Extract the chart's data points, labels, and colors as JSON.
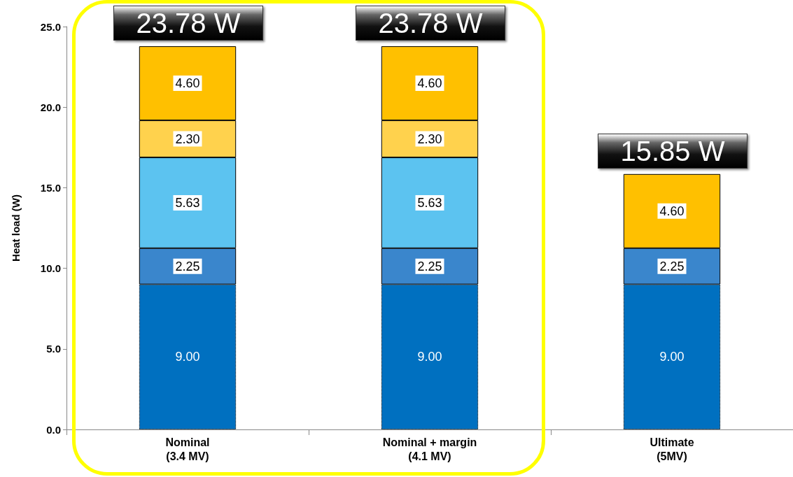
{
  "chart_data": {
    "type": "bar",
    "stacked": true,
    "ylabel": "Heat load (W)",
    "categories": [
      "Nominal\n(3.4 MV)",
      "Nominal + margin\n(4.1 MV)",
      "Ultimate\n(5MV)"
    ],
    "series": [
      {
        "color": "#0070c0",
        "values": [
          9.0,
          9.0,
          9.0
        ],
        "value_labels": [
          "9.00",
          "9.00",
          "9.00"
        ]
      },
      {
        "color": "#3a86cc",
        "values": [
          2.25,
          2.25,
          2.25
        ],
        "value_labels": [
          "2.25",
          "2.25",
          "2.25"
        ]
      },
      {
        "color": "#5cc3f0",
        "values": [
          5.63,
          5.63,
          null
        ],
        "value_labels": [
          "5.63",
          "5.63",
          null
        ]
      },
      {
        "color": "#ffd24d",
        "values": [
          2.3,
          2.3,
          null
        ],
        "value_labels": [
          "2.30",
          "2.30",
          null
        ]
      },
      {
        "color": "#ffc000",
        "values": [
          4.6,
          4.6,
          4.6
        ],
        "value_labels": [
          "4.60",
          "4.60",
          "4.60"
        ]
      }
    ],
    "totals": [
      "23.78 W",
      "23.78 W",
      "15.85 W"
    ],
    "ylim": [
      0,
      25
    ],
    "yticks": [
      {
        "value": 0,
        "label": "0.0"
      },
      {
        "value": 5,
        "label": "5.0"
      },
      {
        "value": 10,
        "label": "10.0"
      },
      {
        "value": 15,
        "label": "15.0"
      },
      {
        "value": 20,
        "label": "20.0"
      },
      {
        "value": 25,
        "label": "25.0"
      }
    ],
    "grid": false
  }
}
